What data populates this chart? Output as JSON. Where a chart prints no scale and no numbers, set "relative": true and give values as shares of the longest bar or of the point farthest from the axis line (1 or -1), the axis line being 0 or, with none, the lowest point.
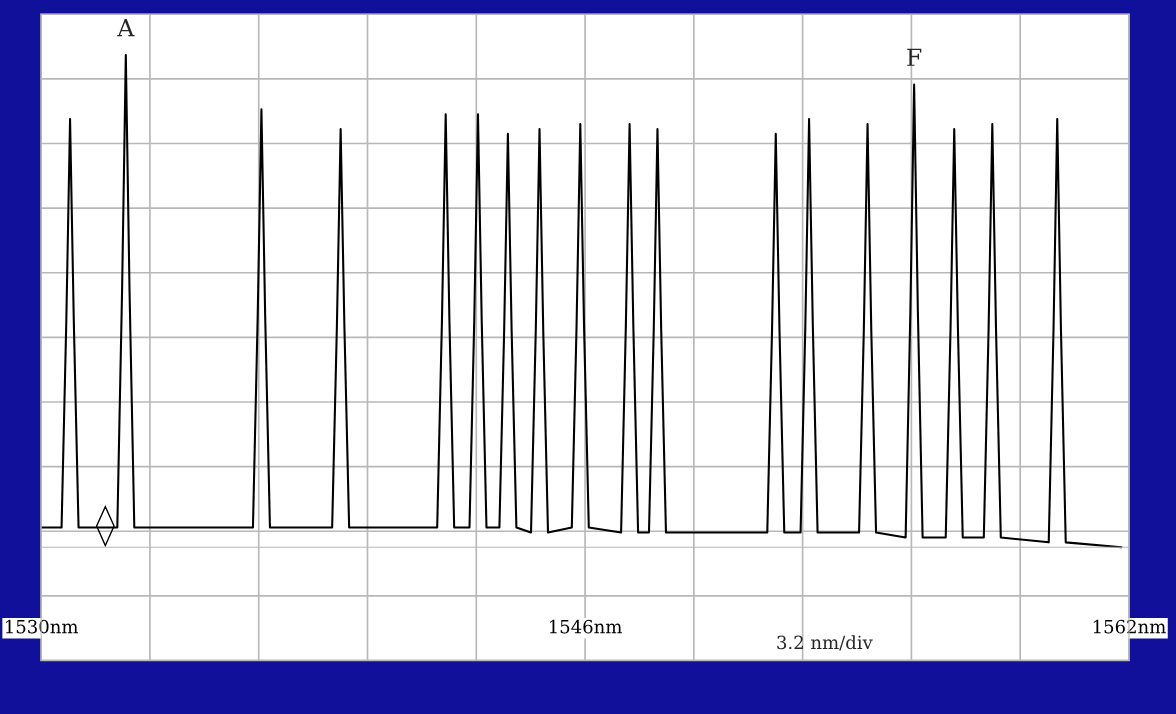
{
  "chart_data": {
    "type": "line",
    "relative": true,
    "color": "#000000",
    "grid": true,
    "marker": "none",
    "line_style": "solid",
    "xlim": [
      1530,
      1562
    ],
    "xticks": [
      {
        "value": 1530,
        "label": "1530nm"
      },
      {
        "value": 1533.2,
        "label": null
      },
      {
        "value": 1536.4,
        "label": null
      },
      {
        "value": 1539.6,
        "label": null
      },
      {
        "value": 1542.8,
        "label": null
      },
      {
        "value": 1546,
        "label": "1546nm"
      },
      {
        "value": 1549.2,
        "label": null
      },
      {
        "value": 1552.4,
        "label": null
      },
      {
        "value": 1555.6,
        "label": null
      },
      {
        "value": 1558.8,
        "label": null
      },
      {
        "value": 1562,
        "label": "1562nm"
      }
    ],
    "x": [
      1530.0,
      1530.6,
      1530.74,
      1530.85,
      1530.96,
      1531.1,
      1532.24,
      1532.38,
      1532.49,
      1532.6,
      1532.74,
      1536.23,
      1536.37,
      1536.48,
      1536.59,
      1536.73,
      1538.56,
      1538.7,
      1538.81,
      1538.92,
      1539.06,
      1541.65,
      1541.79,
      1541.9,
      1542.01,
      1542.15,
      1542.6,
      1542.74,
      1542.85,
      1542.96,
      1543.1,
      1543.48,
      1543.62,
      1543.73,
      1543.84,
      1543.98,
      1544.41,
      1544.55,
      1544.66,
      1544.77,
      1544.91,
      1545.61,
      1545.75,
      1545.86,
      1545.97,
      1546.11,
      1547.06,
      1547.2,
      1547.31,
      1547.42,
      1547.56,
      1547.88,
      1548.02,
      1548.13,
      1548.24,
      1548.38,
      1551.36,
      1551.5,
      1551.61,
      1551.72,
      1551.86,
      1552.34,
      1552.48,
      1552.59,
      1552.7,
      1552.84,
      1554.06,
      1554.2,
      1554.31,
      1554.42,
      1554.56,
      1555.43,
      1555.57,
      1555.68,
      1555.79,
      1555.93,
      1556.61,
      1556.75,
      1556.86,
      1556.97,
      1557.11,
      1557.73,
      1557.87,
      1557.98,
      1558.09,
      1558.23,
      1559.64,
      1559.78,
      1559.89,
      1560.0,
      1560.14,
      1561.78
    ],
    "values": [
      0.04,
      0.04,
      0.46,
      0.87,
      0.46,
      0.04,
      0.04,
      0.52,
      1,
      0.52,
      0.04,
      0.04,
      0.47,
      0.89,
      0.47,
      0.04,
      0.04,
      0.45,
      0.85,
      0.45,
      0.04,
      0.04,
      0.46,
      0.88,
      0.46,
      0.04,
      0.04,
      0.46,
      0.88,
      0.46,
      0.04,
      0.04,
      0.44,
      0.84,
      0.44,
      0.04,
      0.03,
      0.44,
      0.85,
      0.44,
      0.03,
      0.04,
      0.45,
      0.86,
      0.45,
      0.04,
      0.03,
      0.45,
      0.86,
      0.45,
      0.03,
      0.03,
      0.44,
      0.85,
      0.44,
      0.03,
      0.03,
      0.44,
      0.84,
      0.44,
      0.03,
      0.03,
      0.45,
      0.87,
      0.45,
      0.03,
      0.03,
      0.44,
      0.86,
      0.44,
      0.03,
      0.02,
      0.48,
      0.94,
      0.48,
      0.02,
      0.02,
      0.44,
      0.85,
      0.44,
      0.02,
      0.02,
      0.44,
      0.86,
      0.44,
      0.02,
      0.01,
      0.44,
      0.87,
      0.44,
      0.01,
      0
    ],
    "annotations": [
      {
        "text": "A",
        "x": 1532.49,
        "y": 1
      },
      {
        "text": "F",
        "x": 1555.68,
        "y": 0.94
      },
      "3.2 nm/div"
    ]
  }
}
